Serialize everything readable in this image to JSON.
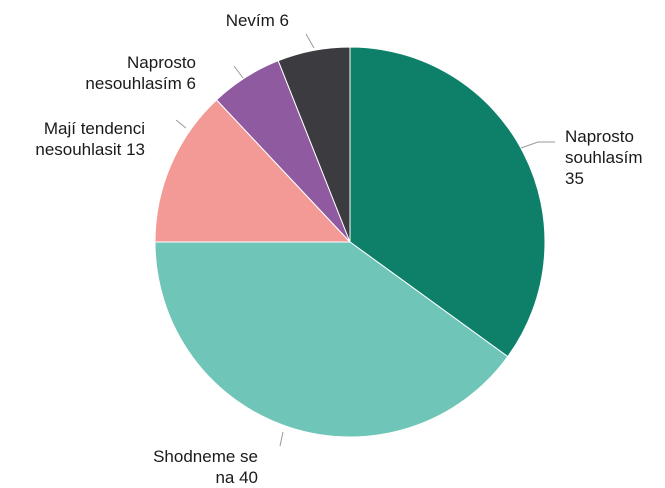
{
  "chart_data": {
    "type": "pie",
    "title": "",
    "slices": [
      {
        "label_lines": [
          "Naprosto",
          "souhlasím",
          "35"
        ],
        "value": 35,
        "color": "#0e806a"
      },
      {
        "label_lines": [
          "Shodneme se",
          "na 40"
        ],
        "value": 40,
        "color": "#6fc6b8"
      },
      {
        "label_lines": [
          "Mají tendenci",
          "nesouhlasit 13"
        ],
        "value": 13,
        "color": "#f49a96"
      },
      {
        "label_lines": [
          "Naprosto",
          "nesouhlasím 6"
        ],
        "value": 6,
        "color": "#8f5aa0"
      },
      {
        "label_lines": [
          "Nevím 6"
        ],
        "value": 6,
        "color": "#3c3b3f"
      }
    ]
  }
}
